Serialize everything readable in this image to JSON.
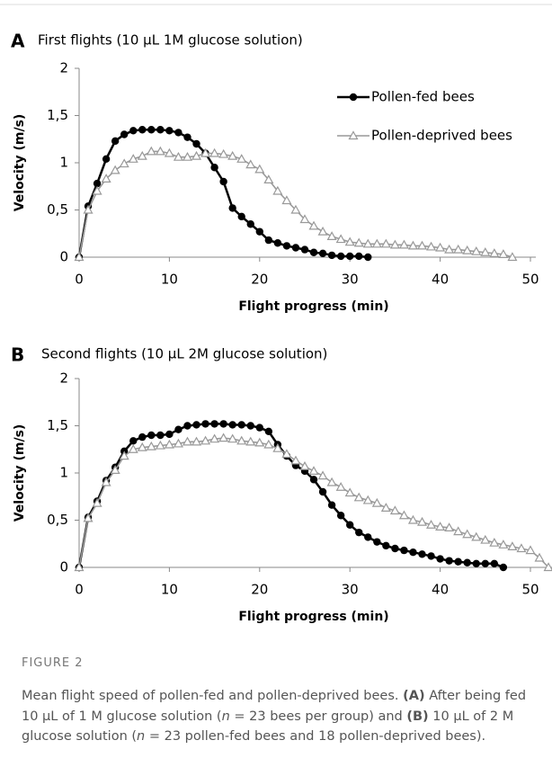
{
  "chart_data": [
    {
      "type": "line",
      "panel": "A",
      "title": "First flights (10 µL 1M glucose solution)",
      "xlabel": "Flight progress (min)",
      "ylabel": "Velocity (m/s)",
      "xlim": [
        0,
        50
      ],
      "xticks": [
        0,
        10,
        20,
        30,
        40,
        50
      ],
      "ylim": [
        0,
        2
      ],
      "yticks": [
        0,
        {
          "value": 0.5,
          "label": "0,5"
        },
        1,
        {
          "value": 1.5,
          "label": "1,5"
        },
        2
      ],
      "legend": "upper right",
      "series": [
        {
          "name": "Pollen-fed bees",
          "color": "#000000",
          "marker": "circle",
          "x": [
            0,
            1,
            2,
            3,
            4,
            5,
            6,
            7,
            8,
            9,
            10,
            11,
            12,
            13,
            14,
            15,
            16,
            17,
            18,
            19,
            20,
            21,
            22,
            23,
            24,
            25,
            26,
            27,
            28,
            29,
            30,
            31,
            32
          ],
          "values": [
            0,
            0.54,
            0.78,
            1.04,
            1.23,
            1.3,
            1.34,
            1.35,
            1.35,
            1.35,
            1.34,
            1.32,
            1.27,
            1.2,
            1.1,
            0.95,
            0.8,
            0.52,
            0.43,
            0.35,
            0.27,
            0.18,
            0.15,
            0.12,
            0.1,
            0.08,
            0.05,
            0.04,
            0.02,
            0.01,
            0.01,
            0.01,
            0
          ]
        },
        {
          "name": "Pollen-deprived bees",
          "color": "#999999",
          "marker": "triangle",
          "x": [
            0,
            1,
            2,
            3,
            4,
            5,
            6,
            7,
            8,
            9,
            10,
            11,
            12,
            13,
            14,
            15,
            16,
            17,
            18,
            19,
            20,
            21,
            22,
            23,
            24,
            25,
            26,
            27,
            28,
            29,
            30,
            31,
            32,
            33,
            34,
            35,
            36,
            37,
            38,
            39,
            40,
            41,
            42,
            43,
            44,
            45,
            46,
            47,
            48
          ],
          "values": [
            0,
            0.5,
            0.7,
            0.83,
            0.92,
            0.99,
            1.04,
            1.07,
            1.12,
            1.12,
            1.1,
            1.06,
            1.06,
            1.07,
            1.1,
            1.1,
            1.09,
            1.07,
            1.04,
            0.98,
            0.93,
            0.82,
            0.7,
            0.6,
            0.5,
            0.4,
            0.33,
            0.27,
            0.22,
            0.19,
            0.16,
            0.15,
            0.14,
            0.14,
            0.14,
            0.13,
            0.13,
            0.12,
            0.12,
            0.11,
            0.1,
            0.08,
            0.08,
            0.07,
            0.06,
            0.05,
            0.04,
            0.03,
            0
          ]
        }
      ]
    },
    {
      "type": "line",
      "panel": "B",
      "title": "Second flights (10 µL 2M glucose solution)",
      "xlabel": "Flight progress (min)",
      "ylabel": "Velocity (m/s)",
      "xlim": [
        0,
        52
      ],
      "xticks": [
        0,
        10,
        20,
        30,
        40,
        50
      ],
      "ylim": [
        0,
        2
      ],
      "yticks": [
        0,
        {
          "value": 0.5,
          "label": "0,5"
        },
        1,
        {
          "value": 1.5,
          "label": "1,5"
        },
        2
      ],
      "series": [
        {
          "color": "#000000",
          "marker": "circle",
          "x": [
            0,
            1,
            2,
            3,
            4,
            5,
            6,
            7,
            8,
            9,
            10,
            11,
            12,
            13,
            14,
            15,
            16,
            17,
            18,
            19,
            20,
            21,
            22,
            23,
            24,
            25,
            26,
            27,
            28,
            29,
            30,
            31,
            32,
            33,
            34,
            35,
            36,
            37,
            38,
            39,
            40,
            41,
            42,
            43,
            44,
            45,
            46,
            47
          ],
          "values": [
            0,
            0.53,
            0.7,
            0.92,
            1.06,
            1.23,
            1.34,
            1.38,
            1.4,
            1.4,
            1.41,
            1.46,
            1.5,
            1.51,
            1.52,
            1.52,
            1.52,
            1.51,
            1.51,
            1.5,
            1.48,
            1.44,
            1.3,
            1.18,
            1.08,
            1.02,
            0.93,
            0.8,
            0.66,
            0.55,
            0.45,
            0.37,
            0.32,
            0.27,
            0.23,
            0.2,
            0.18,
            0.16,
            0.14,
            0.12,
            0.09,
            0.07,
            0.06,
            0.05,
            0.04,
            0.04,
            0.04,
            0
          ]
        },
        {
          "color": "#999999",
          "marker": "triangle",
          "x": [
            0,
            1,
            2,
            3,
            4,
            5,
            6,
            7,
            8,
            9,
            10,
            11,
            12,
            13,
            14,
            15,
            16,
            17,
            18,
            19,
            20,
            21,
            22,
            23,
            24,
            25,
            26,
            27,
            28,
            29,
            30,
            31,
            32,
            33,
            34,
            35,
            36,
            37,
            38,
            39,
            40,
            41,
            42,
            43,
            44,
            45,
            46,
            47,
            48,
            49,
            50,
            51,
            52
          ],
          "values": [
            0,
            0.52,
            0.68,
            0.9,
            1.03,
            1.18,
            1.25,
            1.27,
            1.28,
            1.29,
            1.3,
            1.31,
            1.33,
            1.33,
            1.34,
            1.36,
            1.37,
            1.36,
            1.34,
            1.33,
            1.32,
            1.3,
            1.26,
            1.2,
            1.13,
            1.07,
            1.02,
            0.97,
            0.9,
            0.85,
            0.79,
            0.74,
            0.71,
            0.68,
            0.63,
            0.6,
            0.55,
            0.5,
            0.48,
            0.45,
            0.43,
            0.42,
            0.38,
            0.35,
            0.32,
            0.29,
            0.26,
            0.24,
            0.22,
            0.2,
            0.18,
            0.1,
            0
          ]
        }
      ]
    }
  ],
  "figure_label": "FIGURE 2",
  "caption": [
    "Mean flight speed of pollen-fed and pollen-deprived bees. ",
    "(A)",
    " After being fed 10 µL of 1 M glucose solution (",
    "n",
    " = 23 bees per group) and ",
    "(B)",
    " 10 µL of 2 M glucose solution (",
    "n",
    " = 23 pollen-fed bees and 18 pollen-deprived bees)."
  ]
}
